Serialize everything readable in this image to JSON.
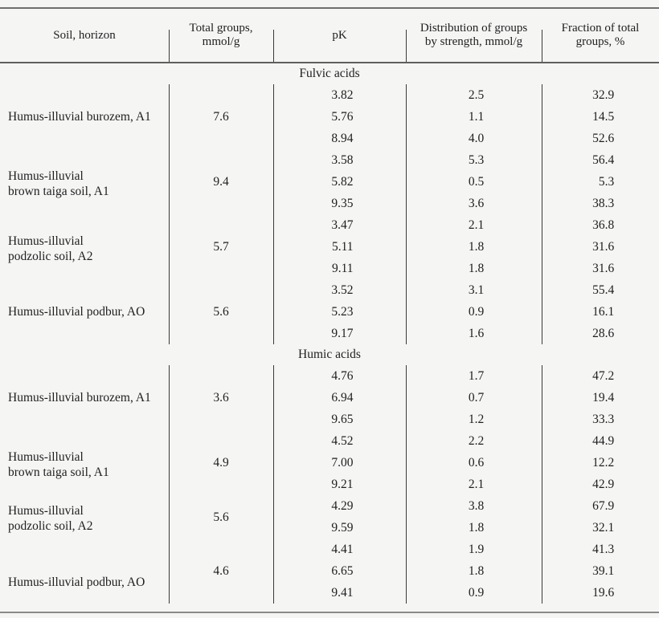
{
  "table": {
    "columns": [
      "Soil, horizon",
      "Total groups,\nmmol/g",
      "pK",
      "Distribution of groups\nby strength, mmol/g",
      "Fraction of total\ngroups, %"
    ],
    "sections": [
      {
        "title": "Fulvic acids",
        "groups": [
          {
            "soil": [
              "Humus-illuvial burozem, A1"
            ],
            "total": "7.6",
            "rows": [
              [
                "3.82",
                "2.5",
                "32.9"
              ],
              [
                "5.76",
                "1.1",
                "14.5"
              ],
              [
                "8.94",
                "4.0",
                "52.6"
              ]
            ]
          },
          {
            "soil": [
              "Humus-illuvial",
              "brown taiga soil, A1"
            ],
            "total": "9.4",
            "rows": [
              [
                "3.58",
                "5.3",
                "56.4"
              ],
              [
                "5.82",
                "0.5",
                "5.3"
              ],
              [
                "9.35",
                "3.6",
                "38.3"
              ]
            ]
          },
          {
            "soil": [
              "Humus-illuvial",
              "podzolic soil, A2"
            ],
            "total": "5.7",
            "rows": [
              [
                "3.47",
                "2.1",
                "36.8"
              ],
              [
                "5.11",
                "1.8",
                "31.6"
              ],
              [
                "9.11",
                "1.8",
                "31.6"
              ]
            ]
          },
          {
            "soil": [
              "Humus-illuvial podbur, AO"
            ],
            "total": "5.6",
            "rows": [
              [
                "3.52",
                "3.1",
                "55.4"
              ],
              [
                "5.23",
                "0.9",
                "16.1"
              ],
              [
                "9.17",
                "1.6",
                "28.6"
              ]
            ]
          }
        ]
      },
      {
        "title": "Humic acids",
        "groups": [
          {
            "soil": [
              "Humus-illuvial burozem, A1"
            ],
            "total": "3.6",
            "rows": [
              [
                "4.76",
                "1.7",
                "47.2"
              ],
              [
                "6.94",
                "0.7",
                "19.4"
              ],
              [
                "9.65",
                "1.2",
                "33.3"
              ]
            ]
          },
          {
            "soil": [
              "Humus-illuvial",
              "brown taiga soil, A1"
            ],
            "total": "4.9",
            "rows": [
              [
                "4.52",
                "2.2",
                "44.9"
              ],
              [
                "7.00",
                "0.6",
                "12.2"
              ],
              [
                "9.21",
                "2.1",
                "42.9"
              ]
            ]
          },
          {
            "soil": [
              "Humus-illuvial",
              "podzolic soil, A2"
            ],
            "total": "5.6",
            "rows": [
              [
                "4.29",
                "3.8",
                "67.9"
              ],
              [
                "9.59",
                "1.8",
                "32.1"
              ]
            ]
          },
          {
            "soil": [
              "Humus-illuvial podbur, AO"
            ],
            "label_row": 1,
            "total": "4.6",
            "rows": [
              [
                "4.41",
                "1.9",
                "41.3"
              ],
              [
                "6.65",
                "1.8",
                "39.1"
              ],
              [
                "9.41",
                "0.9",
                "19.6"
              ]
            ]
          }
        ]
      }
    ]
  },
  "colors": {
    "background": "#f5f5f4",
    "text": "#1e1e1e",
    "heavy_rule": "#6f6f6f",
    "thin_rule": "#3a3a3a"
  }
}
